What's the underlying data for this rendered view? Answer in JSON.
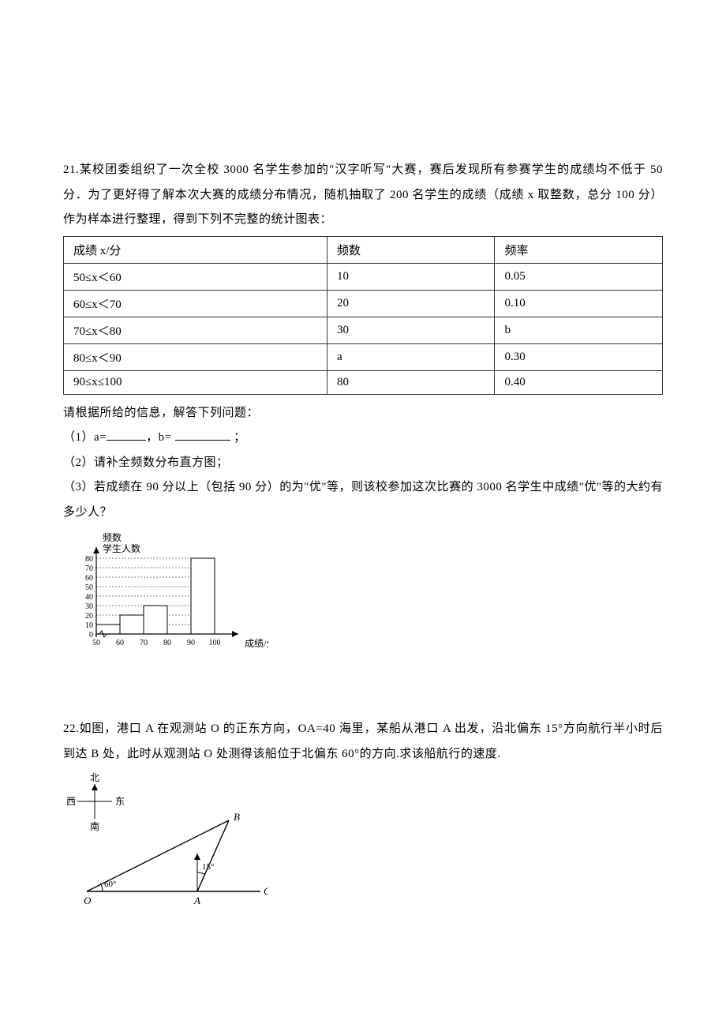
{
  "q21": {
    "number": "21.",
    "intro": "某校团委组织了一次全校 3000 名学生参加的\"汉字听写\"大赛，赛后发现所有参赛学生的成绩均不低于 50 分．为了更好得了解本次大赛的成绩分布情况，随机抽取了 200 名学生的成绩（成绩 x 取整数，总分 100 分）作为样本进行整理，得到下列不完整的统计图表：",
    "table": {
      "columns": [
        "成绩 x/分",
        "频数",
        "频率"
      ],
      "rows": [
        [
          "50≤x＜60",
          "10",
          "0.05"
        ],
        [
          "60≤x＜70",
          "20",
          "0.10"
        ],
        [
          "70≤x＜80",
          "30",
          "b"
        ],
        [
          "80≤x＜90",
          "a",
          "0.30"
        ],
        [
          "90≤x≤100",
          "80",
          "0.40"
        ]
      ]
    },
    "prompt": "请根据所给的信息，解答下列问题：",
    "part1_pre": "（1）a=",
    "part1_mid": "，b= ",
    "part1_post": " ；",
    "part2": "（2）请补全频数分布直方图；",
    "part3": "（3）若成绩在 90 分以上（包括 90 分）的为\"优\"等，则该校参加这次比赛的 3000 名学生中成绩\"优\"等的大约有多少人？",
    "histogram": {
      "y_title1": "频数",
      "y_title2": "学生人数",
      "x_title": "成绩/分",
      "y_ticks": [
        "0",
        "10",
        "20",
        "30",
        "40",
        "50",
        "60",
        "70",
        "80"
      ],
      "x_ticks": [
        "50",
        "60",
        "70",
        "80",
        "90",
        "100"
      ],
      "bar_values": [
        10,
        20,
        30,
        0,
        80
      ],
      "bar_fill": "#ffffff",
      "bar_stroke": "#000000",
      "axis_color": "#000000",
      "grid_dash": "2,2",
      "y_max": 80
    }
  },
  "q22": {
    "number": "22.",
    "text": "如图，港口 A 在观测站 O 的正东方向，OA=40 海里，某船从港口 A 出发，沿北偏东 15°方向航行半小时后到达 B 处，此时从观测站 O 处测得该船位于北偏东 60°的方向.求该船航行的速度.",
    "diagram": {
      "label_north": "北",
      "label_west": "西",
      "label_east": "东",
      "label_south": "南",
      "label_O": "O",
      "label_A": "A",
      "label_B": "B",
      "label_C": "C",
      "angle_O": "60°",
      "angle_A": "15°",
      "stroke": "#000000"
    }
  }
}
